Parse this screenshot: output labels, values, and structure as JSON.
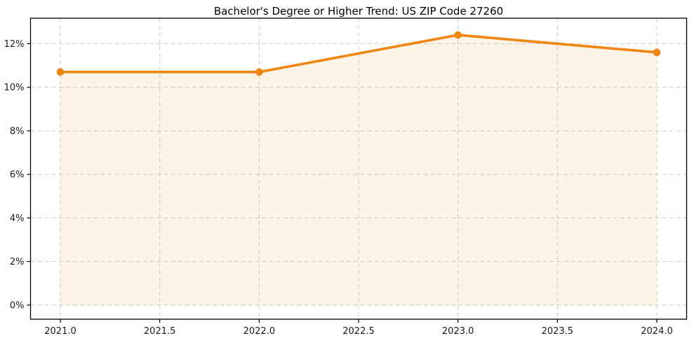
{
  "chart_data": {
    "type": "line",
    "title": "Bachelor's Degree or Higher Trend: US ZIP Code 27260",
    "x": [
      2021,
      2022,
      2023,
      2024
    ],
    "series": [
      {
        "name": "Bachelor's Degree or Higher",
        "values": [
          10.7,
          10.7,
          12.4,
          11.6
        ]
      }
    ],
    "xlabel": "",
    "ylabel": "",
    "xlim": [
      2020.85,
      2024.15
    ],
    "ylim": [
      -0.65,
      13.17
    ],
    "xticks": {
      "values": [
        2021.0,
        2021.5,
        2022.0,
        2022.5,
        2023.0,
        2023.5,
        2024.0
      ],
      "labels": [
        "2021.0",
        "2021.5",
        "2022.0",
        "2022.5",
        "2023.0",
        "2023.5",
        "2024.0"
      ]
    },
    "yticks": {
      "values": [
        0,
        2,
        4,
        6,
        8,
        10,
        12
      ],
      "labels": [
        "0%",
        "2%",
        "4%",
        "6%",
        "8%",
        "10%",
        "12%"
      ]
    },
    "grid": true,
    "grid_style": "dashed",
    "legend": "none",
    "area_fill": true,
    "fill_baseline": 0,
    "style": {
      "line_color": "#f08610",
      "fill_opacity": 0.1,
      "grid_color": "#cccccc",
      "axis_color": "#000000",
      "text_color": "#1a1a1a",
      "line_width": 3.6,
      "marker_size": 5.3
    }
  }
}
